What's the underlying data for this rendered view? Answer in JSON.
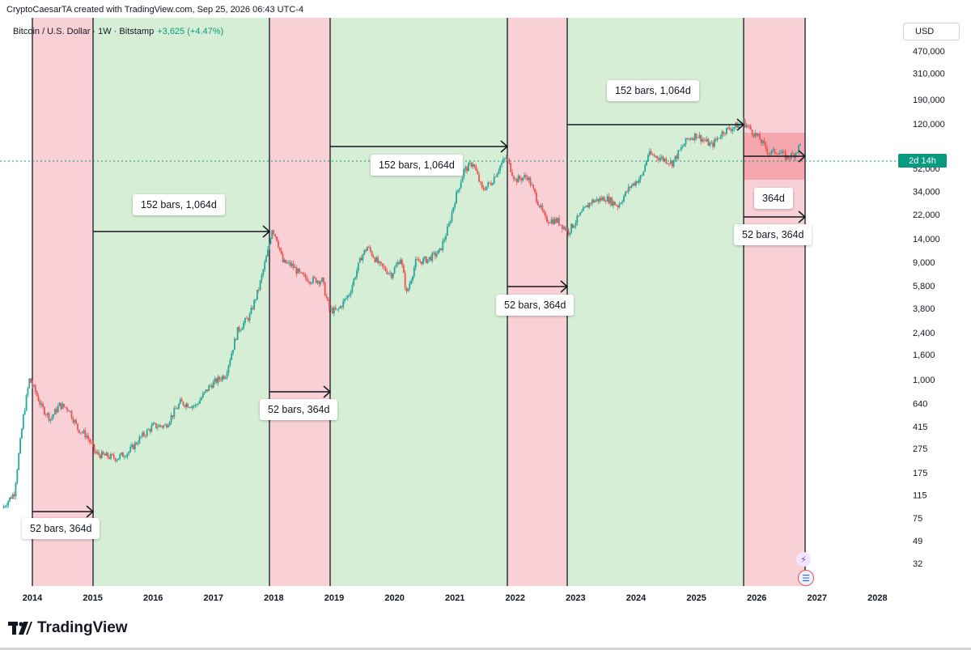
{
  "header": {
    "created_line": "CryptoCaesarTA created with TradingView.com, Sep 25, 2026 06:43 UTC-4"
  },
  "legend": {
    "symbol": "Bitcoin / U.S. Dollar · 1W · Bitstamp",
    "change": "+3,625 (+4.47%)"
  },
  "currency_button": "USD",
  "countdown_tag": "2d 14h",
  "brand": "TradingView",
  "labels": {
    "l1": "52 bars, 364d",
    "l2": "152 bars, 1,064d",
    "l3": "52 bars, 364d",
    "l4": "152 bars, 1,064d",
    "l5": "52 bars, 364d",
    "l6": "152 bars, 1,064d",
    "l7": "364d",
    "l8": "52 bars, 364d"
  },
  "chart_data": {
    "type": "candlestick",
    "scale": "log",
    "x_ticks": [
      "2014",
      "2015",
      "2016",
      "2017",
      "2018",
      "2019",
      "2020",
      "2021",
      "2022",
      "2023",
      "2024",
      "2025",
      "2026",
      "2027",
      "2028"
    ],
    "y_ticks": [
      "470,000",
      "310,000",
      "190,000",
      "120,000",
      "52,000",
      "34,000",
      "22,000",
      "14,000",
      "9,000",
      "5,800",
      "3,800",
      "2,400",
      "1,600",
      "1,000",
      "640",
      "415",
      "275",
      "175",
      "115",
      "75",
      "49",
      "32"
    ],
    "bear_zones": [
      [
        "2014-01",
        "2015-01"
      ],
      [
        "2018-01",
        "2018-12"
      ],
      [
        "2021-11",
        "2022-11"
      ],
      [
        "2025-10",
        "2026-10"
      ]
    ],
    "bull_zones": [
      [
        "2015-01",
        "2018-01"
      ],
      [
        "2018-12",
        "2021-11"
      ],
      [
        "2022-11",
        "2025-10"
      ]
    ],
    "colors": {
      "bear_zone": "#f8d0d6",
      "bull_zone": "#d6eed6",
      "up": "#26a69a",
      "down": "#ef5350",
      "bear_top_box": "#f6a7ae"
    },
    "series": [
      {
        "t": 2013.5,
        "v": 90
      },
      {
        "t": 2013.7,
        "v": 120
      },
      {
        "t": 2013.85,
        "v": 500
      },
      {
        "t": 2013.95,
        "v": 1000
      },
      {
        "t": 2014.05,
        "v": 800
      },
      {
        "t": 2014.15,
        "v": 600
      },
      {
        "t": 2014.3,
        "v": 480
      },
      {
        "t": 2014.45,
        "v": 620
      },
      {
        "t": 2014.6,
        "v": 580
      },
      {
        "t": 2014.75,
        "v": 400
      },
      {
        "t": 2014.9,
        "v": 350
      },
      {
        "t": 2015.05,
        "v": 250
      },
      {
        "t": 2015.2,
        "v": 240
      },
      {
        "t": 2015.4,
        "v": 230
      },
      {
        "t": 2015.6,
        "v": 260
      },
      {
        "t": 2015.8,
        "v": 340
      },
      {
        "t": 2016.0,
        "v": 420
      },
      {
        "t": 2016.2,
        "v": 420
      },
      {
        "t": 2016.45,
        "v": 650
      },
      {
        "t": 2016.7,
        "v": 610
      },
      {
        "t": 2016.95,
        "v": 900
      },
      {
        "t": 2017.2,
        "v": 1100
      },
      {
        "t": 2017.4,
        "v": 2500
      },
      {
        "t": 2017.6,
        "v": 3300
      },
      {
        "t": 2017.75,
        "v": 5500
      },
      {
        "t": 2017.9,
        "v": 11000
      },
      {
        "t": 2017.97,
        "v": 17000
      },
      {
        "t": 2018.05,
        "v": 14000
      },
      {
        "t": 2018.15,
        "v": 9000
      },
      {
        "t": 2018.3,
        "v": 8500
      },
      {
        "t": 2018.45,
        "v": 7000
      },
      {
        "t": 2018.6,
        "v": 6500
      },
      {
        "t": 2018.8,
        "v": 6400
      },
      {
        "t": 2018.92,
        "v": 3700
      },
      {
        "t": 2019.05,
        "v": 3600
      },
      {
        "t": 2019.25,
        "v": 5000
      },
      {
        "t": 2019.45,
        "v": 10000
      },
      {
        "t": 2019.55,
        "v": 12000
      },
      {
        "t": 2019.75,
        "v": 8500
      },
      {
        "t": 2019.95,
        "v": 7200
      },
      {
        "t": 2020.1,
        "v": 9800
      },
      {
        "t": 2020.2,
        "v": 5000
      },
      {
        "t": 2020.35,
        "v": 9000
      },
      {
        "t": 2020.55,
        "v": 9500
      },
      {
        "t": 2020.75,
        "v": 11000
      },
      {
        "t": 2020.9,
        "v": 18000
      },
      {
        "t": 2021.0,
        "v": 29000
      },
      {
        "t": 2021.15,
        "v": 50000
      },
      {
        "t": 2021.3,
        "v": 58000
      },
      {
        "t": 2021.45,
        "v": 35000
      },
      {
        "t": 2021.6,
        "v": 40000
      },
      {
        "t": 2021.75,
        "v": 55000
      },
      {
        "t": 2021.85,
        "v": 64000
      },
      {
        "t": 2022.0,
        "v": 42000
      },
      {
        "t": 2022.2,
        "v": 45000
      },
      {
        "t": 2022.35,
        "v": 30000
      },
      {
        "t": 2022.5,
        "v": 20000
      },
      {
        "t": 2022.7,
        "v": 19500
      },
      {
        "t": 2022.88,
        "v": 16000
      },
      {
        "t": 2023.05,
        "v": 21000
      },
      {
        "t": 2023.25,
        "v": 28000
      },
      {
        "t": 2023.5,
        "v": 30000
      },
      {
        "t": 2023.7,
        "v": 26000
      },
      {
        "t": 2023.9,
        "v": 37000
      },
      {
        "t": 2024.1,
        "v": 45000
      },
      {
        "t": 2024.2,
        "v": 68000
      },
      {
        "t": 2024.4,
        "v": 64000
      },
      {
        "t": 2024.6,
        "v": 58000
      },
      {
        "t": 2024.85,
        "v": 90000
      },
      {
        "t": 2025.0,
        "v": 98000
      },
      {
        "t": 2025.25,
        "v": 80000
      },
      {
        "t": 2025.45,
        "v": 105000
      },
      {
        "t": 2025.6,
        "v": 112000
      },
      {
        "t": 2025.78,
        "v": 124000
      },
      {
        "t": 2025.9,
        "v": 108000
      },
      {
        "t": 2026.05,
        "v": 90000
      },
      {
        "t": 2026.2,
        "v": 70000
      },
      {
        "t": 2026.35,
        "v": 72000
      },
      {
        "t": 2026.5,
        "v": 64000
      },
      {
        "t": 2026.62,
        "v": 68000
      },
      {
        "t": 2026.72,
        "v": 81000
      }
    ]
  }
}
